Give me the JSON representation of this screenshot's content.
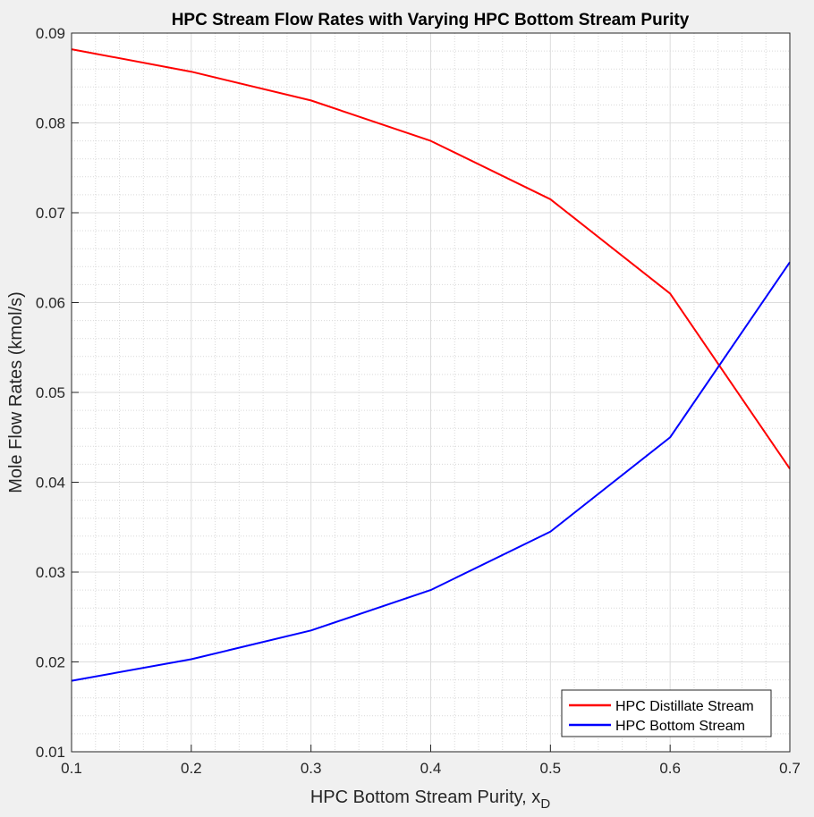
{
  "chart_data": {
    "type": "line",
    "title": "HPC Stream Flow Rates with Varying HPC Bottom Stream Purity",
    "xlabel": "HPC Bottom Stream Purity, x",
    "xlabel_subscript": "D",
    "ylabel": "Mole Flow Rates (kmol/s)",
    "xlim": [
      0.1,
      0.7
    ],
    "ylim": [
      0.01,
      0.09
    ],
    "xticks": [
      "0.1",
      "0.2",
      "0.3",
      "0.4",
      "0.5",
      "0.6",
      "0.7"
    ],
    "yticks": [
      "0.01",
      "0.02",
      "0.03",
      "0.04",
      "0.05",
      "0.06",
      "0.07",
      "0.08",
      "0.09"
    ],
    "grid": true,
    "minor_grid": true,
    "legend_position": "bottom-right",
    "x": [
      0.1,
      0.2,
      0.3,
      0.4,
      0.5,
      0.6,
      0.7
    ],
    "series": [
      {
        "name": "HPC Distillate Stream",
        "color": "#ff0000",
        "values": [
          0.0882,
          0.0857,
          0.0825,
          0.078,
          0.0715,
          0.061,
          0.0415
        ]
      },
      {
        "name": "HPC Bottom Stream",
        "color": "#0000ff",
        "values": [
          0.0179,
          0.0203,
          0.0235,
          0.028,
          0.0345,
          0.045,
          0.0645
        ]
      }
    ]
  }
}
